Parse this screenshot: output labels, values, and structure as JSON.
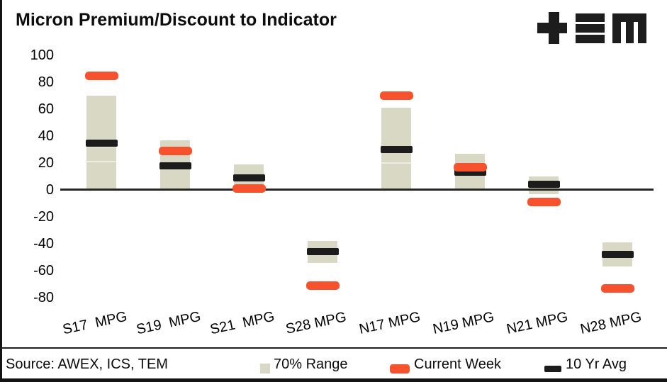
{
  "title": "Micron Premium/Discount to Indicator",
  "logo": {
    "brand": "TEM",
    "glyphs": [
      "plus",
      "triple-bar",
      "m"
    ]
  },
  "source": "Source: AWEX, ICS, TEM",
  "colors": {
    "range": "#d8d8c5",
    "current_week": "#f5522d",
    "ten_yr_avg": "#1c1c1c",
    "axis": "#262626"
  },
  "legend": {
    "items": [
      {
        "label": "70% Range",
        "swatch": "square",
        "color": "#d8d8c5"
      },
      {
        "label": "Current Week",
        "swatch": "rounded",
        "color": "#f5522d"
      },
      {
        "label": "10 Yr Avg",
        "swatch": "dash",
        "color": "#1c1c1c"
      }
    ]
  },
  "chart_data": {
    "type": "bar",
    "subtype": "floating-range-with-markers",
    "title": "Micron Premium/Discount to Indicator",
    "categories": [
      "S17  MPG",
      "S19  MPG",
      "S21  MPG",
      "S28 MPG",
      "N17 MPG",
      "N19 MPG",
      "N21 MPG",
      "N28 MPG"
    ],
    "series": [
      {
        "name": "70% Range",
        "type": "range",
        "ranges": [
          [
            0,
            70
          ],
          [
            0,
            37
          ],
          [
            0,
            19
          ],
          [
            -54,
            -38
          ],
          [
            0,
            61
          ],
          [
            0,
            27
          ],
          [
            -3,
            10
          ],
          [
            -57,
            -39
          ]
        ],
        "dividers": [
          [
            21,
            32
          ],
          [],
          [],
          [],
          [
            20
          ],
          [],
          [],
          []
        ]
      },
      {
        "name": "Current Week",
        "type": "marker",
        "values": [
          85,
          29,
          1,
          -71,
          70,
          17,
          -9,
          -73
        ]
      },
      {
        "name": "10 Yr Avg",
        "type": "marker",
        "values": [
          35,
          18,
          9,
          -46,
          30,
          13,
          4,
          -48
        ]
      }
    ],
    "ylabel": "",
    "xlabel": "",
    "ylim": [
      -80,
      100
    ],
    "yticks": [
      100,
      80,
      60,
      40,
      20,
      0,
      -20,
      -40,
      -60,
      -80
    ],
    "ytick_suffix": "%",
    "grid": false,
    "legend_position": "bottom"
  }
}
